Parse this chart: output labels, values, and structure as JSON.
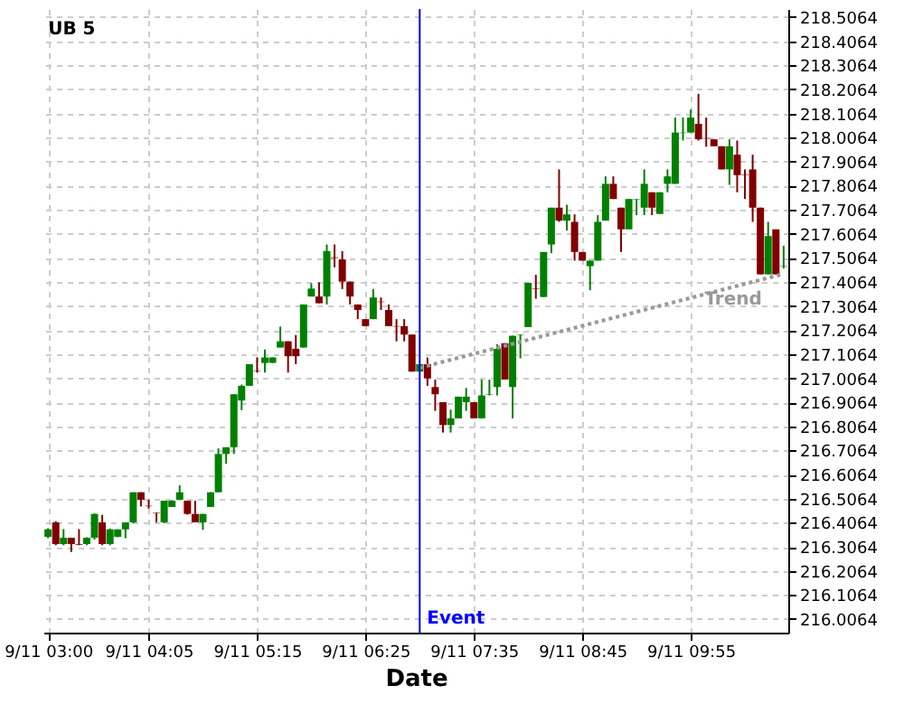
{
  "chart_data": {
    "type": "candlestick",
    "title": "UB 5",
    "xlabel": "Date",
    "categories": [
      "9/11 03:00",
      null,
      null,
      null,
      null,
      null,
      null,
      null,
      null,
      null,
      null,
      null,
      null,
      "9/11 04:05",
      null,
      null,
      null,
      null,
      null,
      null,
      null,
      null,
      null,
      null,
      null,
      null,
      null,
      "9/11 05:15",
      null,
      null,
      null,
      null,
      null,
      null,
      null,
      null,
      null,
      null,
      null,
      null,
      null,
      "9/11 06:25",
      null,
      null,
      null,
      null,
      null,
      null,
      null,
      null,
      null,
      null,
      null,
      null,
      null,
      "9/11 07:35",
      null,
      null,
      null,
      null,
      null,
      null,
      null,
      null,
      null,
      null,
      null,
      null,
      null,
      "9/11 08:45",
      null,
      null,
      null,
      null,
      null,
      null,
      null,
      null,
      null,
      null,
      null,
      null,
      null,
      "9/11 09:55",
      null,
      null,
      null,
      null,
      null,
      null,
      null,
      null,
      null,
      null,
      null,
      null
    ],
    "ohlc": [
      [
        216.348,
        216.384,
        216.342,
        216.379
      ],
      [
        216.408,
        216.413,
        216.313,
        216.318
      ],
      [
        216.318,
        216.38,
        216.313,
        216.344
      ],
      [
        216.344,
        216.344,
        216.285,
        216.318
      ],
      [
        216.318,
        216.38,
        216.313,
        216.315
      ],
      [
        216.318,
        216.346,
        216.313,
        216.344
      ],
      [
        216.344,
        216.445,
        216.337,
        216.443
      ],
      [
        216.408,
        216.439,
        216.313,
        216.318
      ],
      [
        216.318,
        216.382,
        216.313,
        216.379
      ],
      [
        216.348,
        216.379,
        216.346,
        216.379
      ],
      [
        216.379,
        216.408,
        216.342,
        216.408
      ],
      [
        216.408,
        216.533,
        216.404,
        216.533
      ],
      [
        216.533,
        216.533,
        216.474,
        216.502
      ],
      [
        216.477,
        216.502,
        216.465,
        216.475
      ],
      [
        216.448,
        216.448,
        216.408,
        216.446
      ],
      [
        216.408,
        216.498,
        216.404,
        216.498
      ],
      [
        216.472,
        216.5,
        216.472,
        216.498
      ],
      [
        216.502,
        216.562,
        216.502,
        216.533
      ],
      [
        216.498,
        216.498,
        216.44,
        216.443
      ],
      [
        216.443,
        216.498,
        216.408,
        216.408
      ],
      [
        216.408,
        216.443,
        216.377,
        216.443
      ],
      [
        216.472,
        216.533,
        216.472,
        216.533
      ],
      [
        216.533,
        216.715,
        216.533,
        216.692
      ],
      [
        216.692,
        216.72,
        216.651,
        216.72
      ],
      [
        216.72,
        216.94,
        216.692,
        216.94
      ],
      [
        216.914,
        216.98,
        216.874,
        216.975
      ],
      [
        216.975,
        217.065,
        216.975,
        217.065
      ],
      [
        217.039,
        217.093,
        217.03,
        217.037
      ],
      [
        217.07,
        217.126,
        217.03,
        217.093
      ],
      [
        217.07,
        217.093,
        217.07,
        217.093
      ],
      [
        217.134,
        217.221,
        217.134,
        217.16
      ],
      [
        217.16,
        217.16,
        217.03,
        217.098
      ],
      [
        217.129,
        217.186,
        217.065,
        217.098
      ],
      [
        217.134,
        217.313,
        217.134,
        217.313
      ],
      [
        217.346,
        217.401,
        217.346,
        217.379
      ],
      [
        217.346,
        217.405,
        217.318,
        217.318
      ],
      [
        217.346,
        217.562,
        217.313,
        217.535
      ],
      [
        217.509,
        217.562,
        217.467,
        217.506
      ],
      [
        217.5,
        217.535,
        217.377,
        217.408
      ],
      [
        217.408,
        217.408,
        217.313,
        217.346
      ],
      [
        217.313,
        217.313,
        217.252,
        217.29
      ],
      [
        217.252,
        217.252,
        217.223,
        217.223
      ],
      [
        217.252,
        217.377,
        217.252,
        217.342
      ],
      [
        217.325,
        217.342,
        217.29,
        217.323
      ],
      [
        217.29,
        217.313,
        217.223,
        217.223
      ],
      [
        217.223,
        217.252,
        217.16,
        217.221
      ],
      [
        217.223,
        217.252,
        217.16,
        217.188
      ],
      [
        217.188,
        217.188,
        217.034,
        217.034
      ],
      [
        217.034,
        217.065,
        217.034,
        217.065
      ],
      [
        217.065,
        217.093,
        216.975,
        217.006
      ],
      [
        216.97,
        217.001,
        216.871,
        216.94
      ],
      [
        216.907,
        216.907,
        216.781,
        216.812
      ],
      [
        216.812,
        216.876,
        216.781,
        216.84
      ],
      [
        216.84,
        216.93,
        216.84,
        216.93
      ],
      [
        216.907,
        216.966,
        216.871,
        216.93
      ],
      [
        216.907,
        216.907,
        216.84,
        216.84
      ],
      [
        216.84,
        217.001,
        216.84,
        216.935
      ],
      [
        216.938,
        217.001,
        216.935,
        216.94
      ],
      [
        216.97,
        217.148,
        216.935,
        217.129
      ],
      [
        217.152,
        217.152,
        217.001,
        217.001
      ],
      [
        216.97,
        217.183,
        216.84,
        217.183
      ],
      [
        217.186,
        217.188,
        217.089,
        217.188
      ],
      [
        217.219,
        217.403,
        217.219,
        217.403
      ],
      [
        217.38,
        217.436,
        217.337,
        217.378
      ],
      [
        217.344,
        217.531,
        217.344,
        217.531
      ],
      [
        217.562,
        217.715,
        217.526,
        217.715
      ],
      [
        217.715,
        217.874,
        217.656,
        217.661
      ],
      [
        217.661,
        217.727,
        217.62,
        217.687
      ],
      [
        217.656,
        217.687,
        217.495,
        217.531
      ],
      [
        217.531,
        217.531,
        217.495,
        217.495
      ],
      [
        217.472,
        217.495,
        217.372,
        217.495
      ],
      [
        217.495,
        217.684,
        217.495,
        217.656
      ],
      [
        217.661,
        217.845,
        217.661,
        217.814
      ],
      [
        217.814,
        217.845,
        217.751,
        217.751
      ],
      [
        217.715,
        217.715,
        217.531,
        217.625
      ],
      [
        217.625,
        217.751,
        217.625,
        217.751
      ],
      [
        217.749,
        217.751,
        217.684,
        217.751
      ],
      [
        217.715,
        217.874,
        217.684,
        217.814
      ],
      [
        217.779,
        217.779,
        217.684,
        217.715
      ],
      [
        217.689,
        217.779,
        217.689,
        217.779
      ],
      [
        217.814,
        217.874,
        217.779,
        217.845
      ],
      [
        217.814,
        218.089,
        217.814,
        218.027
      ],
      [
        218.025,
        218.089,
        217.994,
        218.027
      ],
      [
        218.027,
        218.122,
        218.027,
        218.089
      ],
      [
        218.063,
        218.188,
        217.994,
        217.999
      ],
      [
        218.004,
        218.089,
        217.968,
        218.002
      ],
      [
        217.999,
        217.999,
        217.97,
        217.97
      ],
      [
        217.97,
        217.97,
        217.874,
        217.874
      ],
      [
        217.874,
        217.999,
        217.81,
        217.97
      ],
      [
        217.935,
        217.994,
        217.779,
        217.85
      ],
      [
        217.852,
        217.874,
        217.751,
        217.85
      ],
      [
        217.874,
        217.935,
        217.656,
        217.715
      ],
      [
        217.715,
        217.715,
        217.438,
        217.438
      ],
      [
        217.438,
        217.656,
        217.438,
        217.597
      ],
      [
        217.625,
        217.625,
        217.438,
        217.438
      ],
      [
        217.472,
        217.557,
        217.462,
        217.474
      ]
    ],
    "colors": [
      "#008000",
      "#800000",
      "#008000",
      "#800000",
      "#800000",
      "#008000",
      "#008000",
      "#800000",
      "#008000",
      "#008000",
      "#008000",
      "#008000",
      "#800000",
      "#800000",
      "#800000",
      "#008000",
      "#008000",
      "#008000",
      "#800000",
      "#800000",
      "#008000",
      "#008000",
      "#008000",
      "#008000",
      "#008000",
      "#008000",
      "#008000",
      "#800000",
      "#008000",
      "#008000",
      "#008000",
      "#800000",
      "#800000",
      "#008000",
      "#008000",
      "#800000",
      "#008000",
      "#800000",
      "#800000",
      "#800000",
      "#800000",
      "#800000",
      "#008000",
      "#800000",
      "#800000",
      "#800000",
      "#800000",
      "#800000",
      "#008000",
      "#800000",
      "#800000",
      "#800000",
      "#008000",
      "#008000",
      "#008000",
      "#800000",
      "#008000",
      "#008000",
      "#008000",
      "#800000",
      "#008000",
      "#008000",
      "#008000",
      "#800000",
      "#008000",
      "#008000",
      "#800000",
      "#008000",
      "#800000",
      "#800000",
      "#008000",
      "#008000",
      "#008000",
      "#800000",
      "#800000",
      "#008000",
      "#008000",
      "#008000",
      "#800000",
      "#008000",
      "#008000",
      "#008000",
      "#008000",
      "#008000",
      "#800000",
      "#800000",
      "#800000",
      "#800000",
      "#008000",
      "#800000",
      "#800000",
      "#800000",
      "#800000",
      "#008000",
      "#800000",
      "#008000"
    ],
    "series": [
      {
        "type": "line",
        "name": "Trend",
        "color": "#999999",
        "line_style": "dotted",
        "values": [
          null,
          null,
          null,
          null,
          null,
          null,
          null,
          null,
          null,
          null,
          null,
          null,
          null,
          null,
          null,
          null,
          null,
          null,
          null,
          null,
          null,
          null,
          null,
          null,
          null,
          null,
          null,
          null,
          null,
          null,
          null,
          null,
          null,
          null,
          null,
          null,
          null,
          null,
          null,
          null,
          null,
          null,
          null,
          null,
          null,
          null,
          null,
          null,
          217.05,
          null,
          null,
          null,
          null,
          null,
          null,
          null,
          null,
          null,
          null,
          null,
          null,
          null,
          null,
          null,
          null,
          null,
          null,
          null,
          null,
          null,
          null,
          null,
          null,
          null,
          null,
          null,
          null,
          null,
          null,
          null,
          null,
          null,
          null,
          null,
          null,
          null,
          null,
          null,
          null,
          null,
          null,
          null,
          null,
          null,
          null,
          217.44
        ]
      }
    ],
    "annotations": [
      "Event"
    ],
    "ylim": [
      215.95,
      218.54
    ],
    "yticks": [
      216.0064,
      216.1064,
      216.2064,
      216.3064,
      216.4064,
      216.5064,
      216.6064,
      216.7064,
      216.8064,
      216.9064,
      217.0064,
      217.1064,
      217.2064,
      217.3064,
      217.4064,
      217.5064,
      217.6064,
      217.7064,
      217.8064,
      217.9064,
      218.0064,
      218.1064,
      218.2064,
      218.3064,
      218.4064,
      218.5064
    ],
    "grid": true
  }
}
